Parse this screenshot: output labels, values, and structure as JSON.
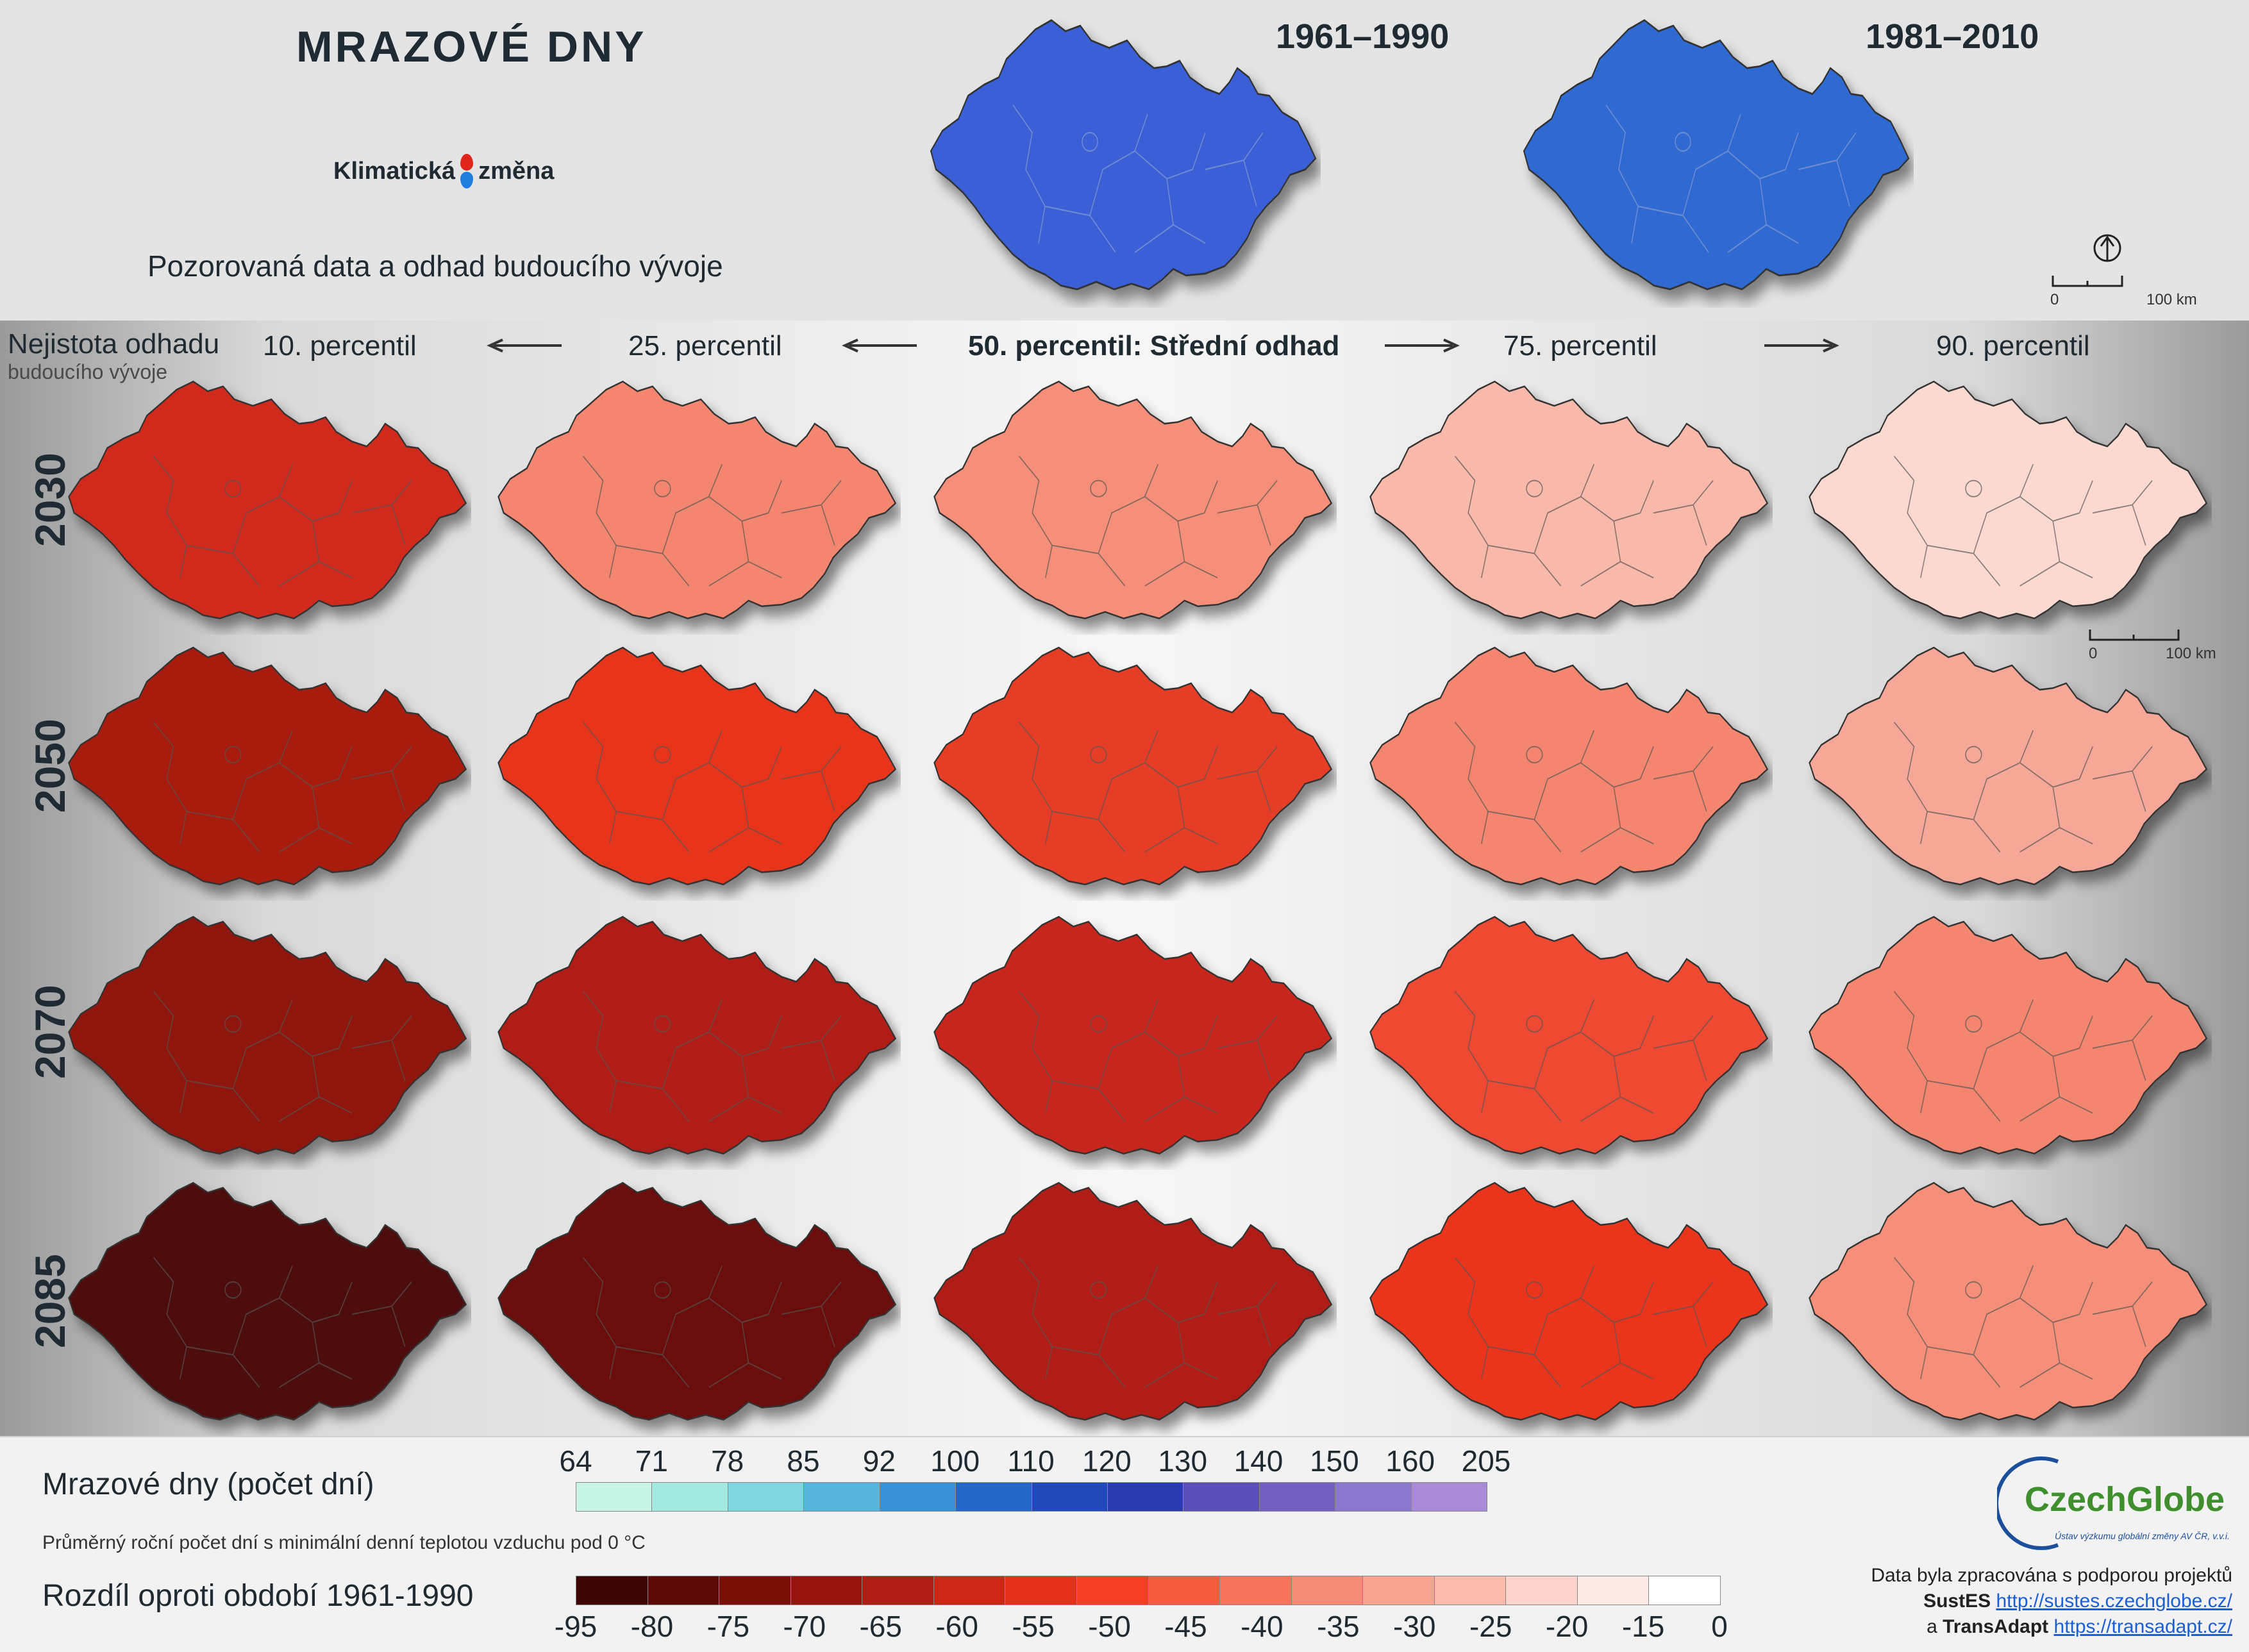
{
  "header": {
    "title": "MRAZOVÉ DNY",
    "logo_word1": "Klimatická",
    "logo_word2": "změna",
    "subtitle": "Pozorovaná data a odhad budoucího vývoje",
    "periods": [
      "1961–1990",
      "1981–2010"
    ]
  },
  "scale": {
    "zero": "0",
    "km": "100 km"
  },
  "uncertainty": {
    "line1": "Nejistota odhadu",
    "line2": "budoucího vývoje"
  },
  "columns": [
    {
      "label": "10. percentil",
      "bold": false
    },
    {
      "label": "25. percentil",
      "bold": false
    },
    {
      "label": "50. percentil: Střední odhad",
      "bold": true
    },
    {
      "label": "75. percentil",
      "bold": false
    },
    {
      "label": "90. percentil",
      "bold": false
    }
  ],
  "years": [
    "2030",
    "2050",
    "2070",
    "2085"
  ],
  "map_fill": {
    "baseline": [
      "#3a5fd6",
      "#2f6ad2"
    ],
    "rows": [
      [
        "#cf2a1c",
        "#f48670",
        "#f58f7a",
        "#f8b8aa",
        "#fbd9d1"
      ],
      [
        "#a71a10",
        "#e7341f",
        "#e63e28",
        "#f48670",
        "#f6a898"
      ],
      [
        "#8e150c",
        "#b01d12",
        "#c8261a",
        "#ee4a33",
        "#f48670"
      ],
      [
        "#4e0907",
        "#6a0d09",
        "#b01d12",
        "#e9341f",
        "#f58f7a"
      ]
    ]
  },
  "legend_frost": {
    "title": "Mrazové dny (počet dní)",
    "description": "Průměrný roční počet dní s minimální denní teplotou vzduchu pod 0 °C",
    "ticks": [
      "64",
      "71",
      "78",
      "85",
      "92",
      "100",
      "110",
      "120",
      "130",
      "140",
      "150",
      "160",
      "205"
    ],
    "colors": [
      "#c8f5e6",
      "#a2eadf",
      "#7fd6e0",
      "#57b5dd",
      "#3890d5",
      "#2467c9",
      "#2249bc",
      "#2a3bb2",
      "#5a4fb8",
      "#735fc0",
      "#8b78cc",
      "#a98ad6"
    ]
  },
  "legend_diff": {
    "title": "Rozdíl oproti období 1961-1990",
    "ticks": [
      "-95",
      "-80",
      "-75",
      "-70",
      "-65",
      "-60",
      "-55",
      "-50",
      "-45",
      "-40",
      "-35",
      "-30",
      "-25",
      "-20",
      "-15",
      "0"
    ],
    "colors": [
      "#3d0505",
      "#5c0a07",
      "#7a0f0a",
      "#95150d",
      "#b01d12",
      "#cb2616",
      "#e3311c",
      "#f43f25",
      "#f65a40",
      "#f7735b",
      "#f88b76",
      "#f9a391",
      "#fabbac",
      "#fcd4cb",
      "#fdeae5",
      "#ffffff"
    ]
  },
  "credits": {
    "org_name": "CzechGlobe",
    "org_sub": "Ústav výzkumu globální změny AV ČR, v.v.i.",
    "line1": "Data byla zpracována s podporou projektů",
    "project1": "SustES",
    "link1": "http://sustes.czechglobe.cz/",
    "joiner": "a",
    "project2": "TransAdapt",
    "link2": "https://transadapt.cz/"
  }
}
